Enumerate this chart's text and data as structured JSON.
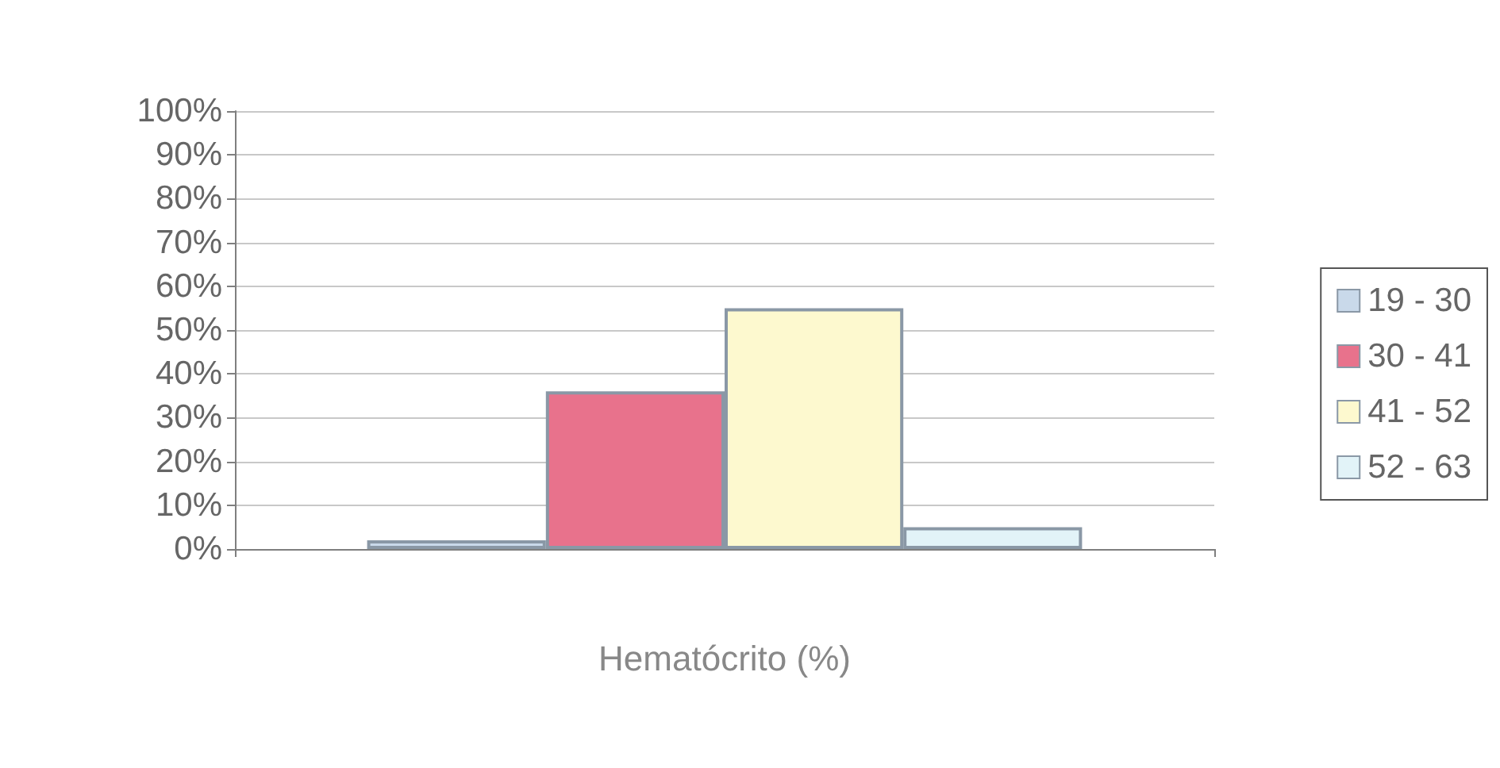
{
  "chart_data": {
    "type": "bar",
    "xlabel": "Hematócrito (%)",
    "categories": [
      null
    ],
    "series": [
      {
        "name": "19 - 30",
        "color": "#c9d9ea",
        "values": [
          2
        ]
      },
      {
        "name": "30 - 41",
        "color": "#e8728c",
        "values": [
          36
        ]
      },
      {
        "name": "41 - 52",
        "color": "#fdf9cf",
        "values": [
          55
        ]
      },
      {
        "name": "52 - 63",
        "color": "#e2f3f8",
        "values": [
          5
        ]
      }
    ],
    "ylim": [
      0,
      100
    ],
    "yticks": [
      {
        "value": 0,
        "label": "0%"
      },
      {
        "value": 10,
        "label": "10%"
      },
      {
        "value": 20,
        "label": "20%"
      },
      {
        "value": 30,
        "label": "30%"
      },
      {
        "value": 40,
        "label": "40%"
      },
      {
        "value": 50,
        "label": "50%"
      },
      {
        "value": 60,
        "label": "60%"
      },
      {
        "value": 70,
        "label": "70%"
      },
      {
        "value": 80,
        "label": "80%"
      },
      {
        "value": 90,
        "label": "90%"
      },
      {
        "value": 100,
        "label": "100%"
      }
    ],
    "grid": "y",
    "legend": "right"
  }
}
